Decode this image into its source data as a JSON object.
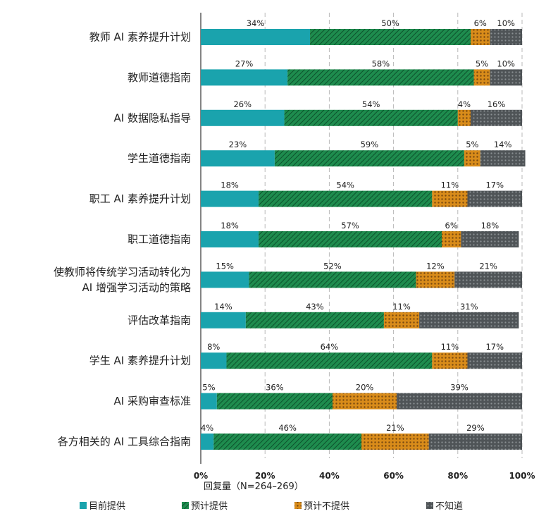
{
  "chart_data": {
    "type": "bar",
    "stacked": true,
    "orientation": "horizontal",
    "categories": [
      [
        "教师 AI 素养提升计划"
      ],
      [
        "教师道德指南"
      ],
      [
        "AI 数据隐私指导"
      ],
      [
        "学生道德指南"
      ],
      [
        "职工 AI 素养提升计划"
      ],
      [
        "职工道德指南"
      ],
      [
        "使教师将传统学习活动转化为",
        "AI 增强学习活动的策略"
      ],
      [
        "评估改革指南"
      ],
      [
        "学生 AI 素养提升计划"
      ],
      [
        "AI 采购审查标准"
      ],
      [
        "各方相关的 AI 工具综合指南"
      ]
    ],
    "series": [
      {
        "name": "目前提供",
        "color": "#1aa3ad",
        "pattern": "solid",
        "values": [
          34,
          27,
          26,
          23,
          18,
          18,
          15,
          14,
          8,
          5,
          4
        ],
        "labels": [
          "34%",
          "27%",
          "26%",
          "23%",
          "18%",
          "18%",
          "15%",
          "14%",
          "8%",
          "5%",
          "4%"
        ]
      },
      {
        "name": "预计提供",
        "color": "#1e8c4e",
        "pattern": "hatch",
        "values": [
          50,
          58,
          54,
          59,
          54,
          57,
          52,
          43,
          64,
          36,
          46
        ],
        "labels": [
          "50%",
          "58%",
          "54%",
          "59%",
          "54%",
          "57%",
          "52%",
          "43%",
          "64%",
          "36%",
          "46%"
        ]
      },
      {
        "name": "预计不提供",
        "color": "#d98c1a",
        "pattern": "dots",
        "values": [
          6,
          5,
          4,
          5,
          11,
          6,
          12,
          11,
          11,
          20,
          21
        ],
        "labels": [
          "6%",
          "5%",
          "4%",
          "5%",
          "11%",
          "6%",
          "12%",
          "11%",
          "11%",
          "20%",
          "21%"
        ]
      },
      {
        "name": "不知道",
        "color": "#555b5e",
        "pattern": "dots",
        "values": [
          10,
          10,
          16,
          14,
          17,
          18,
          21,
          31,
          17,
          39,
          29
        ],
        "labels": [
          "10%",
          "10%",
          "16%",
          "14%",
          "17%",
          "18%",
          "21%",
          "31%",
          "17%",
          "39%",
          "29%"
        ]
      }
    ],
    "x_ticks": [
      "0%",
      "20%",
      "40%",
      "60%",
      "80%",
      "100%"
    ],
    "xlim": [
      0,
      100
    ],
    "xlabel": "回复量（N=264–269）",
    "grid": "vertical dashed",
    "legend_position": "bottom"
  }
}
